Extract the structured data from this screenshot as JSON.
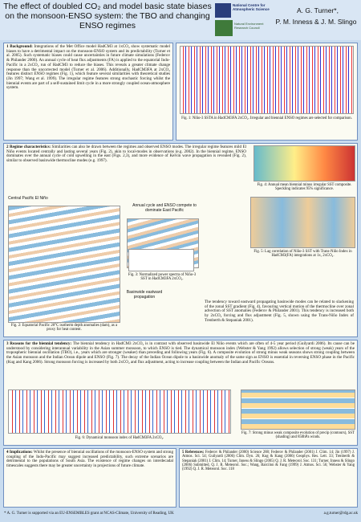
{
  "header": {
    "title": "The effect of doubled CO₂ and model basic state biases on the monsoon-ENSO system: the TBO and changing ENSO regimes",
    "logo_ncas": "National Centre for Atmospheric Science",
    "logo_nerc": "Natural Environment Research Council",
    "author_main": "A. G. Turner*,",
    "authors_other": "P. M. Inness & J. M. Slingo"
  },
  "sections": [
    {
      "heading": "1 Background:",
      "body": "Integrations of the Met Office model HadCM3 at 1xCO₂ show systematic model biases to have a detrimental impact on the monsoon-ENSO system and its predictability (Turner et al. 2005). Such systematic biases could cause uncertainties in future climate simulations (Federov & Philander 2000). An annual cycle of heat flux adjustments (FA) is applied to the equatorial Indo-Pacific in a 2xCO₂ run of HadCM3 to reduce the biases. This reveals a greater climate change response than the uncorrected model (Turner et al. 2006). Additionally, HadCM3FA at 2xCO₂ features distinct ENSO regimes (Fig. 1), which feature several similarities with theoretical studies (Jin 1997; Wang et al. 1999). The irregular regime features strong stochastic forcing whilst the biennial events are part of a self-sustained limit cycle in a more strongly coupled ocean-atmosphere system."
    },
    {
      "heading": "2 Regime characteristics:",
      "body": "Similarities can also be drawn between the regimes and observed ENSO modes. The irregular regime features mild El Niño events located centrally and lasting several years (Fig. 2), akin to local-modes in observations (e.g. 2002). In the biennial regime, ENSO dominates over the annual cycle of cold upwelling in the east (Figs. 2,3), and more evidence of Kelvin wave propagation is revealed (Fig. 2), similar to observed basinwide thermocline modes (e.g. 1997)."
    },
    {
      "heading": "3 Reasons for the biennial tendency:",
      "body": "The biennial tendency in HadCM3 2xCO₂ is in contrast with observed basinwide El Niño events which are often of 4-5 year period (Guilyardi 2006). Its cause can be understood by considering interannual variability in the Asian summer monsoon, to which ENSO is tied. The dynamical monsoon index (Webster & Yang 1992) allows selection of strong (weak) years of the tropospheric biennial oscillation (TBO), i.e., years which are stronger (weaker) than preceding and following years (Fig. 6). A composite evolution of strong minus weak seasons shows strong coupling between the Asian monsoon and the Indian Ocean dipole and ENSO (Fig. 7). The decay of the Indian Ocean dipole to a basinwide anomaly of the same sign as ENSO is essential in reversing ENSO phase in the Pacific (Kug and Kang 2006). Strong monsoon forcing is increased by both 2xCO₂ and flux adjustment, acting to increase coupling between the Indian and Pacific Oceans."
    },
    {
      "heading": "4 Implications:",
      "body": "Whilst the presence of biennial oscillations of the monsoon-ENSO system and strong coupling of the Indo-Pacific may suggest increased predictability, such extreme scenarios are detrimental to the populations of South Asia. The existence of regime changes on interdecadal timescales suggests there may be greater uncertainty in projections of future climate."
    },
    {
      "heading": "5 References:",
      "body": "Federov & Philander (2000) Science 288; Federov & Philander (2001) J. Clim. 14; Jin (1997) J. Atmos. Sci. 54; Guilyardi (2006) Clim. Dyn. 26; Kug & Kang (2006) Geophys. Res. Lett. 33; Trenberth & Stepaniak (2001) J. Clim. 14; Turner, Inness & Slingo (2005) Q. J. R. Meteorol. Soc. 131; Turner, Inness & Slingo (2006) Submitted, Q. J. R. Meteorol. Soc.; Wang, Barcilon & Fang (1999) J. Atmos. Sci. 56; Webster & Yang (1992) Q. J. R. Meteorol. Soc. 118"
    }
  ],
  "section2_extra": "The tendency toward eastward propagating basinwide modes can be related to slackening of the zonal SST gradient (Fig. 4), favouring vertical motion of the thermocline over zonal advection of SST anomalies (Federov & Philander 2001). This tendency is increased both by 2xCO₂ forcing and flux adjustment (Fig. 5, shown using the Trans-Niño Index of Trenberth & Stepaniak 2001).",
  "figure_labels": [
    "Central Pacific El Niño",
    "Annual cycle and ENSO compete to dominate East Pacific",
    "Basinwide eastward propagation"
  ],
  "captions": {
    "fig1": "Fig. 1: Niño-3 SSTA in HadCM3FA 2xCO₂. Irregular and biennial ENSO regimes are selected for comparison.",
    "fig2": "Fig. 2: Equatorial Pacific 20°C isotherm depth anomalies (dam), as a proxy for heat content.",
    "fig3": "Fig. 3: Normalized power spectra of Niño-3 SST in HadCM3FA 2xCO₂.",
    "fig4": "Fig. 4: Annual mean biennial minus irregular SST composite. Speckling indicates 95% significance.",
    "fig5": "Fig. 5: Lag correlation of Niño-3 SST with Trans-Niño Index in HadCM3(FA) integrations at 1x, 2xCO₂.",
    "fig6": "Fig. 6: Dynamical monsoon index of HadCM3FA 2xCO₂.",
    "fig7": "Fig. 7: Strong minus weak composite evolution of precip (contours), SST (shading) and 850hPa winds."
  },
  "footer": {
    "note": "* A. G. Turner is supported via an EU-ENSEMBLES grant at NCAS-Climate, University of Reading, UK",
    "email": "a.g.turner@rdg.ac.uk"
  }
}
